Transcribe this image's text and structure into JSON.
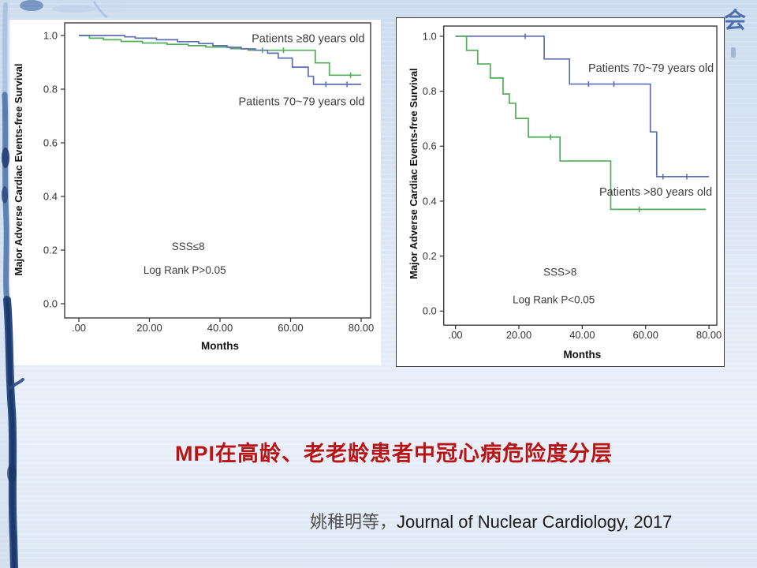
{
  "slide": {
    "title": "MPI在高龄、老老龄患者中冠心病危险度分层",
    "citation_cn": "姚稚明等，",
    "citation_en": "Journal of Nuclear Cardiology, 2017",
    "corner_mark": "会",
    "colors": {
      "title_red": "#b81414",
      "background_blue": "#d6e2f2",
      "curve_green": "#4fae57",
      "curve_blue": "#5e6db3",
      "seal_blue": "#4c6fae"
    }
  },
  "chart_data": [
    {
      "type": "line",
      "subtype": "kaplan-meier-step",
      "title": "",
      "xlabel": "Months",
      "ylabel": "Major Adverse Cardiac Events-free Survival",
      "xlim": [
        0,
        80
      ],
      "ylim": [
        0.0,
        1.0
      ],
      "grid": false,
      "legend": "inline-labels",
      "xticks": [
        0,
        20,
        40,
        60,
        80
      ],
      "xtick_labels": [
        ".00",
        "20.00",
        "40.00",
        "60.00",
        "80.00"
      ],
      "yticks": [
        0.0,
        0.2,
        0.4,
        0.6,
        0.8,
        1.0
      ],
      "ytick_labels": [
        "0.0",
        "0.2",
        "0.4",
        "0.6",
        "0.8",
        "1.0"
      ],
      "series": [
        {
          "name": "Patients ≥80 years old",
          "color": "#4fae57",
          "x": [
            0,
            3,
            7,
            12,
            18,
            25,
            31,
            36,
            43,
            48,
            67,
            71,
            80
          ],
          "y": [
            1.0,
            0.99,
            0.984,
            0.978,
            0.972,
            0.967,
            0.962,
            0.957,
            0.951,
            0.945,
            0.898,
            0.852,
            0.852
          ],
          "censors": [
            [
              52,
              0.945
            ],
            [
              58,
              0.945
            ],
            [
              77,
              0.852
            ]
          ],
          "label": {
            "x": 81,
            "y": 0.975,
            "anchor": "end"
          }
        },
        {
          "name": "Patients 70~79 years old",
          "color": "#5e6db3",
          "x": [
            0,
            13,
            16,
            22,
            28,
            34,
            38,
            42,
            46,
            50,
            53.5,
            56.5,
            60.5,
            65,
            66.5,
            80
          ],
          "y": [
            1.0,
            0.995,
            0.99,
            0.984,
            0.977,
            0.97,
            0.962,
            0.956,
            0.95,
            0.945,
            0.934,
            0.916,
            0.882,
            0.848,
            0.818,
            0.818
          ],
          "censors": [
            [
              70,
              0.818
            ],
            [
              76,
              0.818
            ]
          ],
          "label": {
            "x": 81,
            "y": 0.74,
            "anchor": "end"
          }
        }
      ],
      "annotations": [
        {
          "text": "SSS≤8",
          "x": 31,
          "y": 0.2
        },
        {
          "text": "Log Rank P>0.05",
          "x": 30,
          "y": 0.112
        }
      ]
    },
    {
      "type": "line",
      "subtype": "kaplan-meier-step",
      "title": "",
      "xlabel": "Months",
      "ylabel": "Major Adverse Cardiac Events-free Survival",
      "xlim": [
        0,
        80
      ],
      "ylim": [
        0.0,
        1.0
      ],
      "grid": false,
      "legend": "inline-labels",
      "xticks": [
        0,
        20,
        40,
        60,
        80
      ],
      "xtick_labels": [
        ".00",
        "20.00",
        "40.00",
        "60.00",
        "80.00"
      ],
      "yticks": [
        0.0,
        0.2,
        0.4,
        0.6,
        0.8,
        1.0
      ],
      "ytick_labels": [
        "0.0",
        "0.2",
        "0.4",
        "0.6",
        "0.8",
        "1.0"
      ],
      "series": [
        {
          "name": "Patients 70~79 years old",
          "color": "#5e6db3",
          "x": [
            0,
            28,
            36,
            61.5,
            63.5,
            80
          ],
          "y": [
            1.0,
            0.917,
            0.826,
            0.652,
            0.489,
            0.489
          ],
          "censors": [
            [
              22,
              1.0
            ],
            [
              42,
              0.826
            ],
            [
              50,
              0.826
            ],
            [
              65.5,
              0.489
            ],
            [
              73,
              0.489
            ]
          ],
          "label": {
            "x": 81.5,
            "y": 0.87,
            "anchor": "end"
          }
        },
        {
          "name": "Patients >80 years old",
          "color": "#4fae57",
          "x": [
            0,
            3.5,
            7,
            11,
            15,
            17,
            19,
            23,
            33,
            49,
            79
          ],
          "y": [
            1.0,
            0.949,
            0.899,
            0.848,
            0.79,
            0.756,
            0.701,
            0.633,
            0.546,
            0.37,
            0.37
          ],
          "censors": [
            [
              30,
              0.633
            ],
            [
              58,
              0.37
            ]
          ],
          "label": {
            "x": 81,
            "y": 0.42,
            "anchor": "end"
          }
        }
      ],
      "annotations": [
        {
          "text": "SSS>8",
          "x": 33,
          "y": 0.128
        },
        {
          "text": "Log Rank P<0.05",
          "x": 31,
          "y": 0.028
        }
      ]
    }
  ]
}
